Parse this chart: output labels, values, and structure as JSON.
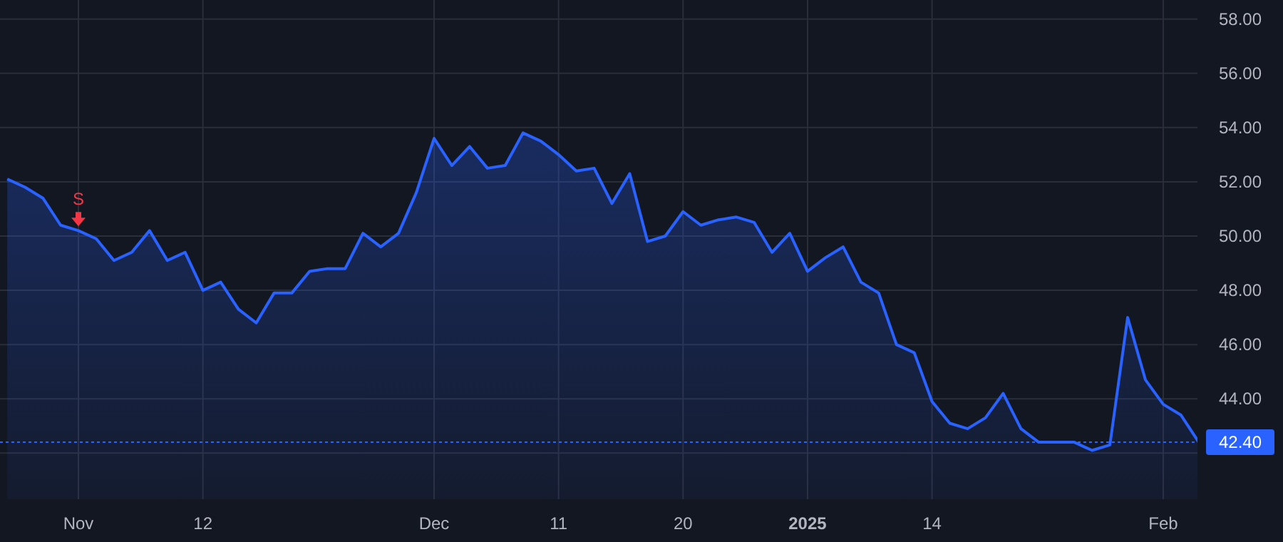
{
  "chart_data": {
    "type": "area",
    "categories": [
      null,
      null,
      null,
      null,
      "Nov",
      null,
      null,
      null,
      null,
      null,
      null,
      "12",
      null,
      null,
      null,
      null,
      null,
      null,
      null,
      null,
      null,
      null,
      null,
      null,
      "Dec",
      null,
      null,
      null,
      null,
      null,
      null,
      "11",
      null,
      null,
      null,
      null,
      null,
      null,
      "20",
      null,
      null,
      null,
      null,
      null,
      null,
      "2025",
      null,
      null,
      null,
      null,
      null,
      null,
      "14",
      null,
      null,
      null,
      null,
      null,
      null,
      null,
      null,
      null,
      null,
      null,
      null,
      "Feb",
      null,
      null
    ],
    "series": [
      {
        "color": "#2962ff",
        "values": [
          52.1,
          51.8,
          51.4,
          50.4,
          50.2,
          49.9,
          49.1,
          49.4,
          50.2,
          49.1,
          49.4,
          48.0,
          48.3,
          47.3,
          46.8,
          47.9,
          47.9,
          48.7,
          48.8,
          48.8,
          50.1,
          49.6,
          50.1,
          51.6,
          53.6,
          52.6,
          53.3,
          52.5,
          52.6,
          53.8,
          53.5,
          53.0,
          52.4,
          52.5,
          51.2,
          52.3,
          49.8,
          50.0,
          50.9,
          50.4,
          50.6,
          50.7,
          50.5,
          49.4,
          50.1,
          48.7,
          49.2,
          49.6,
          48.3,
          47.9,
          46.0,
          45.7,
          43.9,
          43.1,
          42.9,
          43.3,
          44.2,
          42.9,
          42.4,
          42.4,
          42.4,
          42.1,
          42.3,
          47.0,
          44.7,
          43.8,
          43.4,
          42.4
        ]
      }
    ],
    "ylim": [
      40.3,
      58.7
    ],
    "yticks": [
      {
        "value": 42,
        "label": null
      },
      {
        "value": 44,
        "label": "44.00"
      },
      {
        "value": 46,
        "label": "46.00"
      },
      {
        "value": 48,
        "label": "48.00"
      },
      {
        "value": 50,
        "label": "50.00"
      },
      {
        "value": 52,
        "label": "52.00"
      },
      {
        "value": 54,
        "label": "54.00"
      },
      {
        "value": 56,
        "label": "56.00"
      },
      {
        "value": 58,
        "label": "58.00"
      }
    ],
    "grid": true,
    "ref_lines": [
      {
        "axis": "y",
        "value": 42.4,
        "label": "42.40",
        "color": "#2962ff",
        "line_style": "dotted"
      }
    ],
    "annotations": [
      {
        "text": "S",
        "y": 50.2
      }
    ]
  }
}
